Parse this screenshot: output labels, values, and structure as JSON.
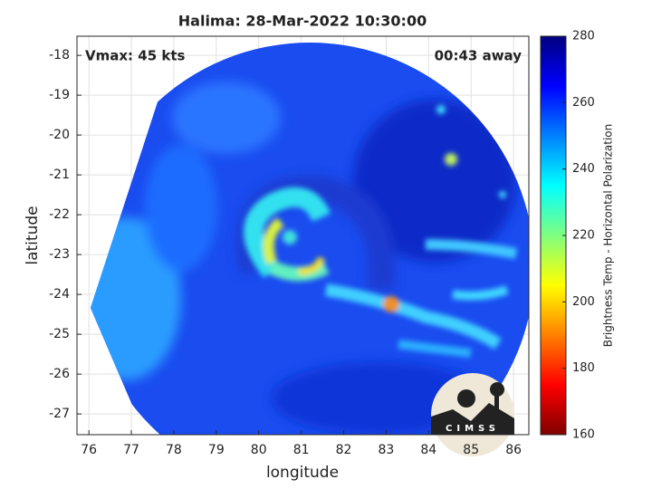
{
  "chart_data": {
    "type": "image",
    "title": "Halima: 28-Mar-2022 10:30:00",
    "annotations": [
      "Vmax: 45 kts",
      "00:43 away"
    ],
    "xlabel": "longitude",
    "ylabel": "latitude",
    "xlim": [
      75.72,
      86.36
    ],
    "ylim": [
      -27.52,
      -17.52
    ],
    "xticks": [
      76,
      77,
      78,
      79,
      80,
      81,
      82,
      83,
      84,
      85,
      86
    ],
    "yticks": [
      -18,
      -19,
      -20,
      -21,
      -22,
      -23,
      -24,
      -25,
      -26,
      -27
    ],
    "grid": true,
    "colorbar": {
      "label": "Brightness Temp - Horizontal Polarization",
      "lim": [
        160,
        280
      ],
      "ticks": [
        160,
        180,
        200,
        220,
        240,
        260,
        280
      ],
      "colormap": "jet"
    },
    "logo_text": "CIMSS"
  }
}
